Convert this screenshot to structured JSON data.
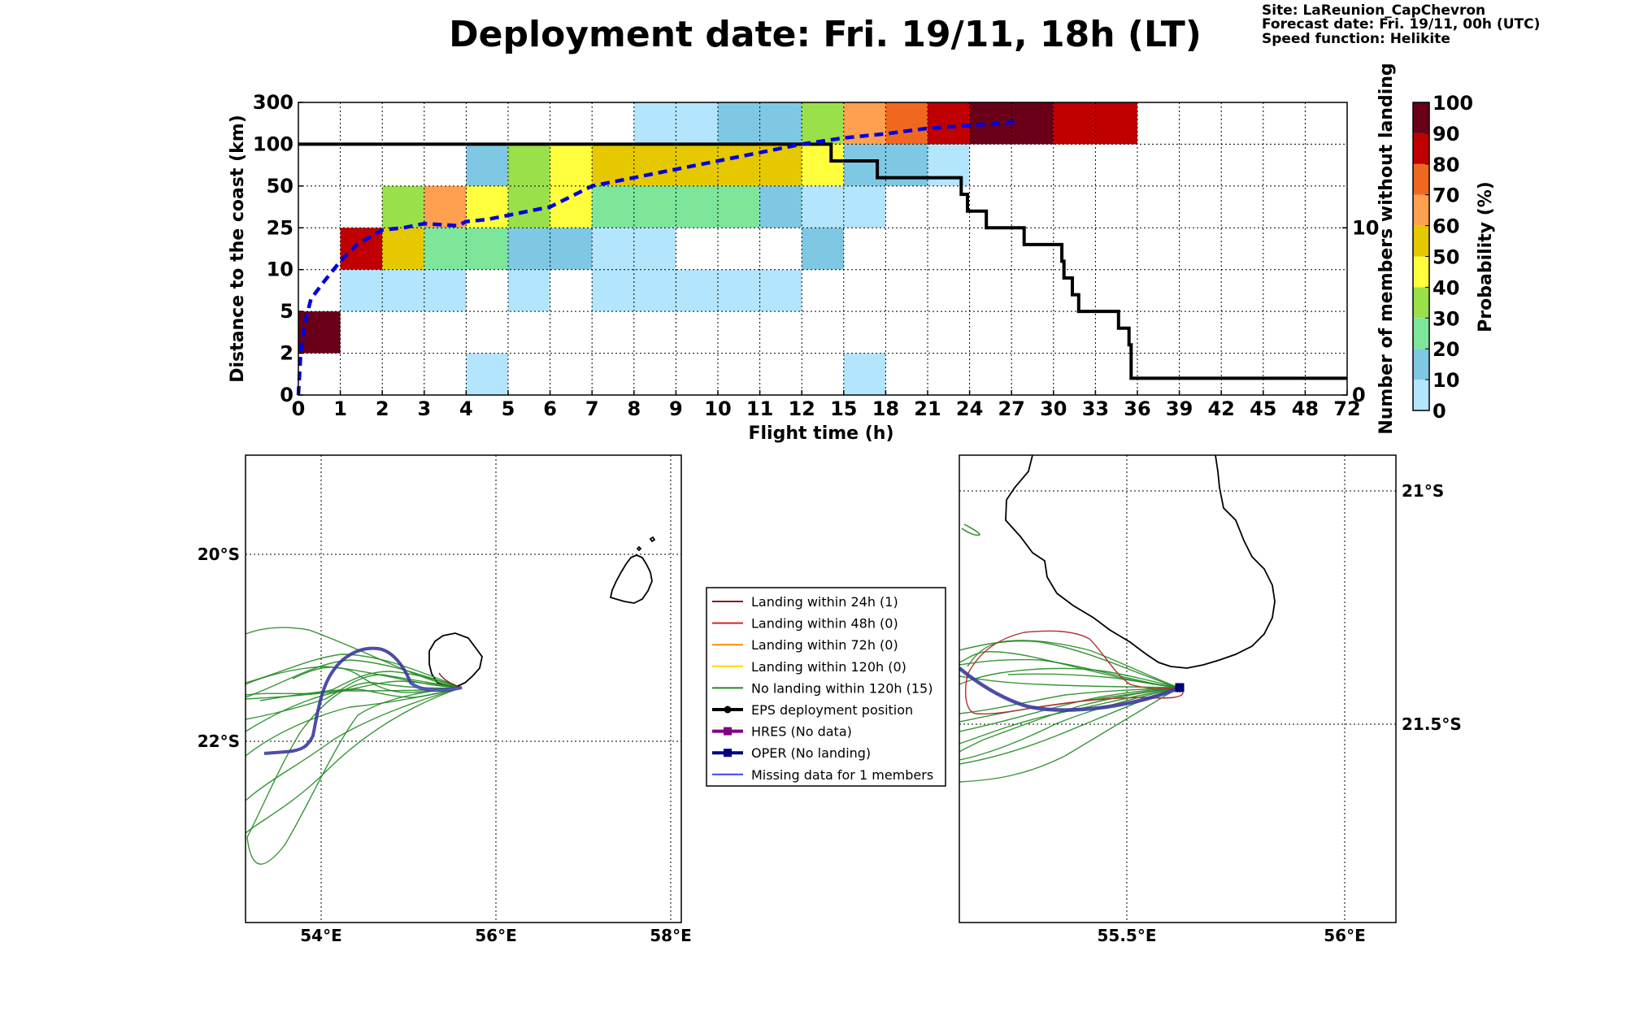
{
  "title": "Deployment date: Fri. 19/11, 18h (LT)",
  "info": {
    "site": "Site: LaReunion_CapChevron",
    "forecast": "Forecast date: Fri. 19/11, 00h (UTC)",
    "speed": "Speed function: Helikite"
  },
  "chart_data": [
    {
      "type": "heatmap",
      "xlabel": "Flight time (h)",
      "ylabel": "Distance to the coast (km)",
      "y2label": "Number of members without landing",
      "x_ticks": [
        "0",
        "1",
        "2",
        "3",
        "4",
        "5",
        "6",
        "7",
        "8",
        "9",
        "10",
        "11",
        "12",
        "15",
        "18",
        "21",
        "24",
        "27",
        "30",
        "33",
        "36",
        "39",
        "42",
        "45",
        "48",
        "72"
      ],
      "y_ticks": [
        "0",
        "2",
        "5",
        "10",
        "25",
        "50",
        "100",
        "300"
      ],
      "y2_ticks": [
        "0",
        "10"
      ],
      "y2lim": [
        0,
        17.5
      ],
      "colorbar": {
        "label": "Probability (%)",
        "ticks": [
          "0",
          "10",
          "20",
          "30",
          "40",
          "50",
          "60",
          "70",
          "80",
          "90",
          "100"
        ],
        "colors": [
          "#b3e5fc",
          "#7ec8e3",
          "#7de69b",
          "#99e04a",
          "#ffff3d",
          "#e6c800",
          "#ffa050",
          "#f06820",
          "#c00000",
          "#6a0018"
        ]
      },
      "cells": [
        {
          "t0": 0,
          "t1": 1,
          "d": 1,
          "p": 95
        },
        {
          "t0": 1,
          "t1": 4,
          "d": 2,
          "p": 5
        },
        {
          "t0": 4,
          "t1": 5,
          "d": 0,
          "p": 5
        },
        {
          "t0": 5,
          "t1": 6,
          "d": 2,
          "p": 5
        },
        {
          "t0": 7,
          "t1": 12,
          "d": 2,
          "p": 5
        },
        {
          "t0": 1,
          "t1": 2,
          "d": 3,
          "p": 85
        },
        {
          "t0": 2,
          "t1": 3,
          "d": 3,
          "p": 55
        },
        {
          "t0": 3,
          "t1": 5,
          "d": 3,
          "p": 25
        },
        {
          "t0": 5,
          "t1": 7,
          "d": 3,
          "p": 15
        },
        {
          "t0": 7,
          "t1": 9,
          "d": 3,
          "p": 5
        },
        {
          "t0": 12,
          "t1": 13,
          "d": 3,
          "p": 15
        },
        {
          "t0": 2,
          "t1": 3,
          "d": 4,
          "p": 35
        },
        {
          "t0": 3,
          "t1": 4,
          "d": 4,
          "p": 65
        },
        {
          "t0": 4,
          "t1": 5,
          "d": 4,
          "p": 45
        },
        {
          "t0": 5,
          "t1": 6,
          "d": 4,
          "p": 35
        },
        {
          "t0": 6,
          "t1": 7,
          "d": 4,
          "p": 45
        },
        {
          "t0": 7,
          "t1": 11,
          "d": 4,
          "p": 25
        },
        {
          "t0": 11,
          "t1": 12,
          "d": 4,
          "p": 15
        },
        {
          "t0": 12,
          "t1": 14,
          "d": 4,
          "p": 5
        },
        {
          "t0": 4,
          "t1": 5,
          "d": 5,
          "p": 15
        },
        {
          "t0": 5,
          "t1": 6,
          "d": 5,
          "p": 35
        },
        {
          "t0": 6,
          "t1": 7,
          "d": 5,
          "p": 45
        },
        {
          "t0": 7,
          "t1": 12,
          "d": 5,
          "p": 55
        },
        {
          "t0": 12,
          "t1": 13,
          "d": 5,
          "p": 45
        },
        {
          "t0": 13,
          "t1": 15,
          "d": 5,
          "p": 15
        },
        {
          "t0": 15,
          "t1": 16,
          "d": 5,
          "p": 5
        },
        {
          "t0": 8,
          "t1": 10,
          "d": 6,
          "p": 5
        },
        {
          "t0": 10,
          "t1": 12,
          "d": 6,
          "p": 15
        },
        {
          "t0": 12,
          "t1": 13,
          "d": 6,
          "p": 35
        },
        {
          "t0": 13,
          "t1": 14,
          "d": 6,
          "p": 65
        },
        {
          "t0": 14,
          "t1": 15,
          "d": 6,
          "p": 75
        },
        {
          "t0": 15,
          "t1": 16,
          "d": 6,
          "p": 85
        },
        {
          "t0": 16,
          "t1": 18,
          "d": 6,
          "p": 95
        },
        {
          "t0": 18,
          "t1": 20,
          "d": 6,
          "p": 85
        },
        {
          "t0": 13,
          "t1": 14,
          "d": 0,
          "p": 5
        }
      ],
      "members_without_landing": [
        {
          "x": 0,
          "y": 15
        },
        {
          "x": 12.7,
          "y": 15
        },
        {
          "x": 12.7,
          "y": 14
        },
        {
          "x": 13.8,
          "y": 14
        },
        {
          "x": 13.8,
          "y": 13
        },
        {
          "x": 15.8,
          "y": 13
        },
        {
          "x": 15.8,
          "y": 12
        },
        {
          "x": 15.95,
          "y": 12
        },
        {
          "x": 15.95,
          "y": 11
        },
        {
          "x": 16.4,
          "y": 11
        },
        {
          "x": 16.4,
          "y": 10
        },
        {
          "x": 17.3,
          "y": 10
        },
        {
          "x": 17.3,
          "y": 9
        },
        {
          "x": 18.2,
          "y": 9
        },
        {
          "x": 18.2,
          "y": 8
        },
        {
          "x": 18.25,
          "y": 8
        },
        {
          "x": 18.25,
          "y": 7
        },
        {
          "x": 18.45,
          "y": 7
        },
        {
          "x": 18.45,
          "y": 6
        },
        {
          "x": 18.6,
          "y": 6
        },
        {
          "x": 18.6,
          "y": 5
        },
        {
          "x": 19.55,
          "y": 5
        },
        {
          "x": 19.55,
          "y": 4
        },
        {
          "x": 19.8,
          "y": 4
        },
        {
          "x": 19.8,
          "y": 3
        },
        {
          "x": 19.85,
          "y": 3
        },
        {
          "x": 19.85,
          "y": 1
        },
        {
          "x": 25,
          "y": 1
        }
      ],
      "mean_distance": [
        {
          "x": 0,
          "y": 0
        },
        {
          "x": 0.05,
          "y": 0.9
        },
        {
          "x": 0.15,
          "y": 1.7
        },
        {
          "x": 0.3,
          "y": 2.3
        },
        {
          "x": 0.6,
          "y": 2.7
        },
        {
          "x": 1,
          "y": 3.2
        },
        {
          "x": 1.4,
          "y": 3.6
        },
        {
          "x": 2,
          "y": 3.95
        },
        {
          "x": 2.5,
          "y": 4.0
        },
        {
          "x": 3,
          "y": 4.1
        },
        {
          "x": 3.8,
          "y": 4.05
        },
        {
          "x": 4,
          "y": 4.15
        },
        {
          "x": 4.5,
          "y": 4.2
        },
        {
          "x": 5,
          "y": 4.3
        },
        {
          "x": 5.5,
          "y": 4.4
        },
        {
          "x": 6,
          "y": 4.5
        },
        {
          "x": 6.5,
          "y": 4.75
        },
        {
          "x": 7,
          "y": 5.0
        },
        {
          "x": 8,
          "y": 5.2
        },
        {
          "x": 9,
          "y": 5.4
        },
        {
          "x": 10,
          "y": 5.6
        },
        {
          "x": 11,
          "y": 5.8
        },
        {
          "x": 12,
          "y": 6.0
        },
        {
          "x": 13,
          "y": 6.15
        },
        {
          "x": 14,
          "y": 6.25
        },
        {
          "x": 15,
          "y": 6.38
        },
        {
          "x": 16,
          "y": 6.45
        },
        {
          "x": 16.8,
          "y": 6.5
        },
        {
          "x": 17.2,
          "y": 6.55
        }
      ]
    },
    {
      "type": "map",
      "x_ticks": [
        "54°E",
        "56°E",
        "58°E"
      ],
      "y_ticks": [
        "20°S",
        "22°S"
      ]
    },
    {
      "type": "map",
      "x_ticks": [
        "55.5°E",
        "56°E"
      ],
      "y_ticks": [
        "21°S",
        "21.5°S"
      ]
    }
  ],
  "legend": [
    {
      "label": "Landing within 24h (1)",
      "color": "#8b1a1a",
      "marker": ""
    },
    {
      "label": "Landing within 48h (0)",
      "color": "#e02020",
      "marker": ""
    },
    {
      "label": "Landing within 72h (0)",
      "color": "#ff8c00",
      "marker": ""
    },
    {
      "label": "Landing within 120h (0)",
      "color": "#ffd700",
      "marker": ""
    },
    {
      "label": "No landing within 120h (15)",
      "color": "#228b22",
      "marker": ""
    },
    {
      "label": "EPS deployment position",
      "color": "#000000",
      "marker": "circle"
    },
    {
      "label": "HRES (No data)",
      "color": "#800080",
      "marker": "square"
    },
    {
      "label": "OPER (No landing)",
      "color": "#000080",
      "marker": "square"
    },
    {
      "label": "Missing data for 1 members",
      "color": "#4040ff",
      "marker": ""
    }
  ]
}
